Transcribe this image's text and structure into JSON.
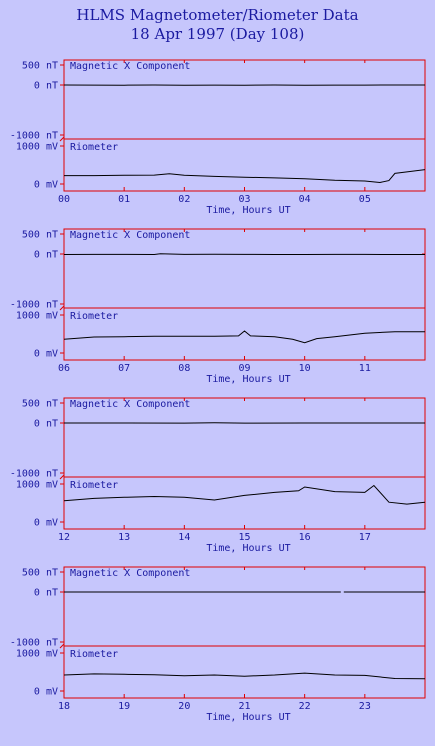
{
  "title": "HLMS Magnetometer/Riometer Data",
  "subtitle": "18 Apr 1997 (Day 108)",
  "colors": {
    "background": "#c6c6fc",
    "frame": "#e00000",
    "text": "#1a1aa0",
    "trace": "#000000"
  },
  "chart_data": [
    {
      "type": "line",
      "xlabel": "Time, Hours UT",
      "xlim": [
        0,
        6
      ],
      "x_ticks": [
        "00",
        "01",
        "02",
        "03",
        "04",
        "05"
      ],
      "panels": [
        {
          "label": "Magnetic X Component",
          "unit": "nT",
          "ylim": [
            -1000,
            500
          ],
          "tick_labels": {
            "top": "500 nT",
            "zero": "0 nT",
            "bottom": "-1000 nT"
          },
          "series": [
            {
              "x": [
                0,
                0.5,
                1,
                1.5,
                2,
                2.5,
                3,
                3.5,
                4,
                4.5,
                5,
                5.5,
                6
              ],
              "y": [
                0,
                -2,
                -3,
                -1,
                -3,
                -2,
                -4,
                -1,
                -3,
                -2,
                -2,
                0,
                0
              ]
            }
          ]
        },
        {
          "label": "Riometer",
          "unit": "mV",
          "ylim": [
            0,
            1000
          ],
          "tick_labels": {
            "top": "1000 mV",
            "zero": "0 mV"
          },
          "series": [
            {
              "x": [
                0,
                0.5,
                1,
                1.5,
                1.75,
                2,
                2.5,
                3,
                3.5,
                4,
                4.5,
                5,
                5.25,
                5.4,
                5.5,
                5.75,
                6
              ],
              "y": [
                220,
                220,
                230,
                235,
                270,
                230,
                200,
                180,
                160,
                140,
                100,
                80,
                40,
                90,
                280,
                330,
                380
              ]
            }
          ]
        }
      ]
    },
    {
      "type": "line",
      "xlabel": "Time, Hours UT",
      "xlim": [
        6,
        12
      ],
      "x_ticks": [
        "06",
        "07",
        "08",
        "09",
        "10",
        "11"
      ],
      "panels": [
        {
          "label": "Magnetic X Component",
          "unit": "nT",
          "ylim": [
            -1000,
            500
          ],
          "tick_labels": {
            "top": "500 nT",
            "zero": "0 nT",
            "bottom": "-1000 nT"
          },
          "series": [
            {
              "x": [
                6,
                6.5,
                7,
                7.5,
                7.6,
                8,
                8.5,
                9,
                9.5,
                10,
                10.5,
                11,
                11.5,
                12
              ],
              "y": [
                -10,
                -8,
                -8,
                -10,
                5,
                -8,
                -5,
                -8,
                -10,
                -10,
                -8,
                -8,
                -10,
                -10
              ]
            }
          ]
        },
        {
          "label": "Riometer",
          "unit": "mV",
          "ylim": [
            0,
            1000
          ],
          "tick_labels": {
            "top": "1000 mV",
            "zero": "0 mV"
          },
          "series": [
            {
              "x": [
                6,
                6.5,
                7,
                7.5,
                8,
                8.5,
                8.9,
                9,
                9.1,
                9.5,
                9.8,
                10,
                10.2,
                10.5,
                11,
                11.5,
                12
              ],
              "y": [
                360,
                420,
                430,
                440,
                440,
                440,
                450,
                580,
                450,
                430,
                360,
                270,
                380,
                430,
                520,
                560,
                560
              ]
            }
          ]
        }
      ]
    },
    {
      "type": "line",
      "xlabel": "Time, Hours UT",
      "xlim": [
        12,
        18
      ],
      "x_ticks": [
        "12",
        "13",
        "14",
        "15",
        "16",
        "17"
      ],
      "panels": [
        {
          "label": "Magnetic X Component",
          "unit": "nT",
          "ylim": [
            -1000,
            500
          ],
          "tick_labels": {
            "top": "500 nT",
            "zero": "0 nT",
            "bottom": "-1000 nT"
          },
          "series": [
            {
              "x": [
                12,
                13,
                14,
                14.5,
                15,
                16,
                17,
                18
              ],
              "y": [
                0,
                0,
                -2,
                5,
                -2,
                0,
                0,
                0
              ]
            }
          ]
        },
        {
          "label": "Riometer",
          "unit": "mV",
          "ylim": [
            0,
            1000
          ],
          "tick_labels": {
            "top": "1000 mV",
            "zero": "0 mV"
          },
          "series": [
            {
              "x": [
                12,
                12.5,
                13,
                13.5,
                14,
                14.5,
                15,
                15.5,
                15.9,
                16,
                16.5,
                17,
                17.15,
                17.4,
                17.7,
                18
              ],
              "y": [
                560,
                620,
                650,
                670,
                650,
                580,
                700,
                780,
                820,
                920,
                800,
                780,
                960,
                520,
                470,
                520
              ]
            }
          ]
        }
      ]
    },
    {
      "type": "line",
      "xlabel": "Time, Hours UT",
      "xlim": [
        18,
        24
      ],
      "x_ticks": [
        "18",
        "19",
        "20",
        "21",
        "22",
        "23"
      ],
      "panels": [
        {
          "label": "Magnetic X Component",
          "unit": "nT",
          "ylim": [
            -1000,
            500
          ],
          "tick_labels": {
            "top": "500 nT",
            "zero": "0 nT",
            "bottom": "-1000 nT"
          },
          "series": [
            {
              "x": [
                18,
                20,
                22,
                22.6
              ],
              "y": [
                0,
                0,
                0,
                0
              ]
            },
            {
              "x": [
                22.65,
                24
              ],
              "y": [
                0,
                0
              ]
            }
          ]
        },
        {
          "label": "Riometer",
          "unit": "mV",
          "ylim": [
            0,
            1000
          ],
          "tick_labels": {
            "top": "1000 mV",
            "zero": "0 mV"
          },
          "series": [
            {
              "x": [
                18,
                18.5,
                19,
                19.5,
                20,
                20.5,
                21,
                21.5,
                22,
                22.5,
                23,
                23.5,
                24
              ],
              "y": [
                420,
                450,
                440,
                430,
                400,
                420,
                390,
                420,
                470,
                420,
                410,
                330,
                320
              ]
            }
          ]
        }
      ]
    }
  ]
}
